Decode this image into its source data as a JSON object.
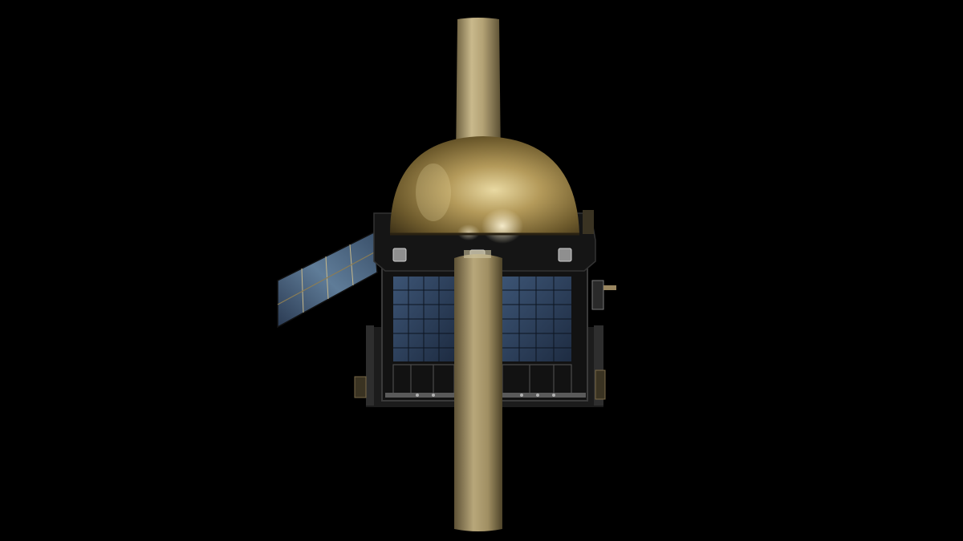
{
  "scene": {
    "subject": "satellite-illustration",
    "background_color": "#000000"
  },
  "colors": {
    "gold_light": "#d9cba0",
    "gold_mid": "#a8966a",
    "gold_dark": "#5e5236",
    "dome_highlight": "#fff6d8",
    "solar_cell": "#2c3f5c",
    "solar_cell_light": "#4a6a8c",
    "bus_frame": "#1a1a1a",
    "bus_plate": "#2a2a2a",
    "metal": "#9a9a9a"
  }
}
